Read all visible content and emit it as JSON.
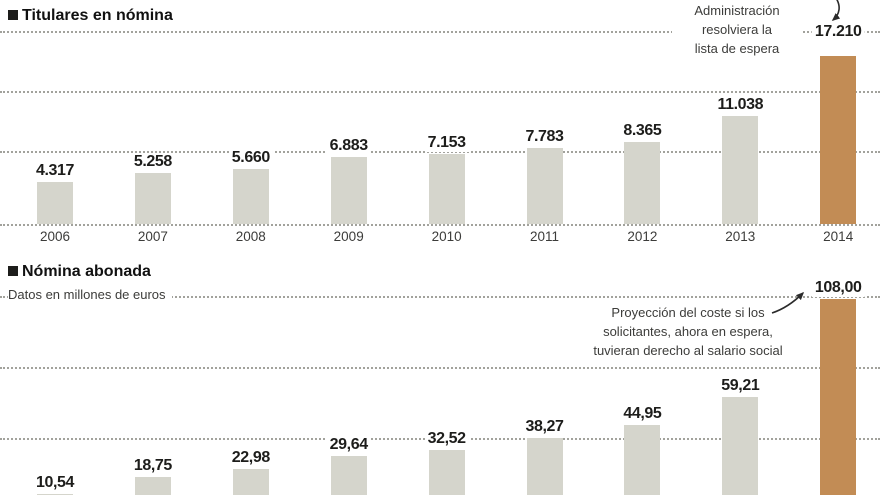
{
  "colors": {
    "bar_gray": "#d5d5cc",
    "bar_highlight": "#c28c55",
    "gridline": "#a2a29c",
    "text_dark": "#1d1d1b",
    "text_muted": "#3c3c3a"
  },
  "chart_data": [
    {
      "type": "bar",
      "title": "Titulares en nómina",
      "categories": [
        "2006",
        "2007",
        "2008",
        "2009",
        "2010",
        "2011",
        "2012",
        "2013",
        "2014"
      ],
      "values": [
        4317,
        5258,
        5660,
        6883,
        7153,
        7783,
        8365,
        11038,
        17210
      ],
      "value_labels": [
        "4.317",
        "5.258",
        "5.660",
        "6.883",
        "7.153",
        "7.783",
        "8.365",
        "11.038",
        "17.210"
      ],
      "highlight_index": 8,
      "annotation": [
        "Administración",
        "resolviera la",
        "lista de espera"
      ],
      "ylim": [
        0,
        17210
      ],
      "grid": "dotted horizontal",
      "legend": "none"
    },
    {
      "type": "bar",
      "title": "Nómina abonada",
      "subtitle": "Datos en millones de euros",
      "values": [
        10.54,
        18.75,
        22.98,
        29.64,
        32.52,
        38.27,
        44.95,
        59.21,
        108.0
      ],
      "value_labels": [
        "10,54",
        "18,75",
        "22,98",
        "29,64",
        "32,52",
        "38,27",
        "44,95",
        "59,21",
        "108,00"
      ],
      "highlight_index": 8,
      "annotation": [
        "Proyección del coste si los",
        "solicitantes, ahora en espera,",
        "tuvieran derecho al salario social"
      ],
      "x_axis_labels_visible": false,
      "grid": "dotted horizontal",
      "legend": "none"
    }
  ]
}
